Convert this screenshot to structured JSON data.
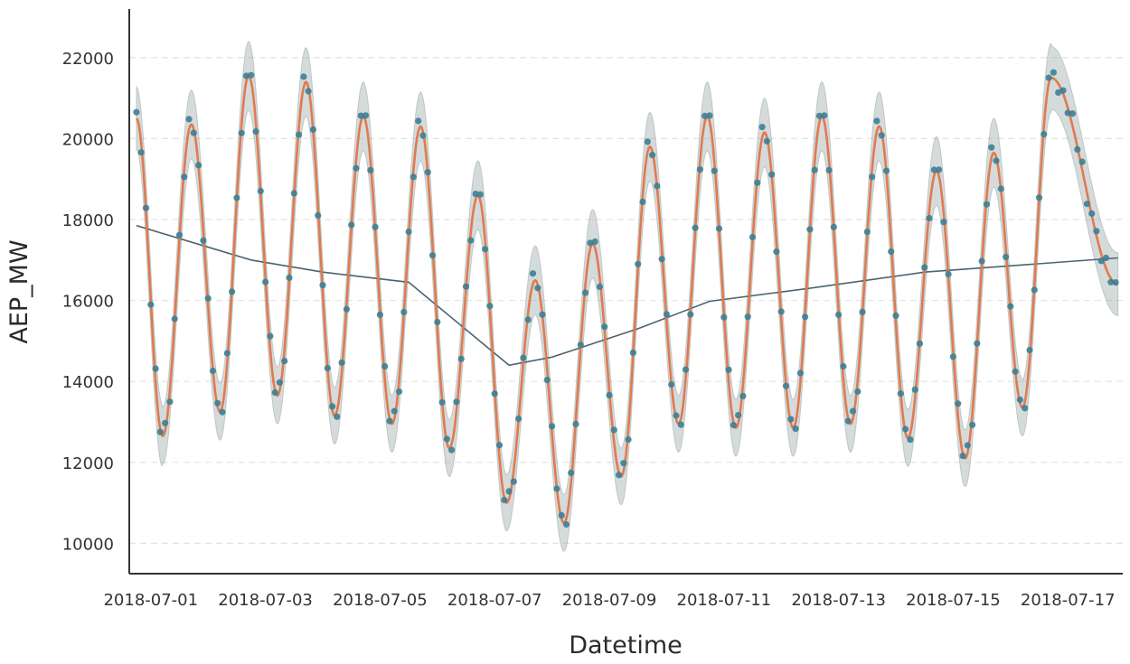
{
  "chart_data": {
    "type": "line",
    "title": "",
    "xlabel": "Datetime",
    "ylabel": "AEP_MW",
    "x_range": [
      "2018-06-30T15:00",
      "2018-07-17T23:00"
    ],
    "ylim": [
      9250,
      23200
    ],
    "x_ticks": [
      "2018-07-01",
      "2018-07-03",
      "2018-07-05",
      "2018-07-07",
      "2018-07-09",
      "2018-07-11",
      "2018-07-13",
      "2018-07-15",
      "2018-07-17"
    ],
    "y_ticks": [
      10000,
      12000,
      14000,
      16000,
      18000,
      20000,
      22000
    ],
    "grid": {
      "horizontal": true,
      "style": "dashed"
    },
    "colors": {
      "observed": "#3d7f95",
      "forecast": "#e07a4f",
      "interval": "#9aa8a6",
      "trend": "#4a6470",
      "axis": "#333333",
      "grid": "#e3e3e3"
    },
    "daily_cycle": {
      "start": "2018-07-01",
      "peak_hour": 17,
      "trough_hour": 5,
      "peaks": [
        20350,
        21550,
        21400,
        20550,
        20300,
        18600,
        16500,
        17400,
        19800,
        20550,
        20150,
        20550,
        20300,
        19200,
        19650,
        21500
      ],
      "troughs": [
        12650,
        13250,
        13650,
        13150,
        12950,
        12350,
        11000,
        10500,
        11650,
        12950,
        12850,
        12850,
        12950,
        12600,
        12100,
        13350
      ]
    },
    "series": [
      {
        "kind": "observed_points",
        "sample_every_hours": 2,
        "residuals": [
          150,
          -220,
          80,
          -120,
          310,
          -60,
          190,
          -280,
          40,
          120,
          -170,
          260,
          -90,
          30,
          -240,
          170,
          -30,
          90,
          -150,
          230,
          -110,
          60,
          -200,
          140
        ]
      },
      {
        "kind": "forecast_line",
        "start": "2018-06-30T18:00",
        "end": "2018-07-17T21:00",
        "first_value": 20500,
        "last_value": 16400
      },
      {
        "kind": "uncertainty_band",
        "half_width_at_peak": 850,
        "half_width_at_trough": 700
      },
      {
        "kind": "trend",
        "x": [
          "2018-06-30T18:00",
          "2018-07-02T18:00",
          "2018-07-04T00:00",
          "2018-07-05T12:00",
          "2018-07-07T06:00",
          "2018-07-08T00:00",
          "2018-07-09T12:00",
          "2018-07-10T18:00",
          "2018-07-12T12:00",
          "2018-07-14T12:00",
          "2018-07-17T21:00"
        ],
        "y": [
          17850,
          17000,
          16700,
          16450,
          14400,
          14600,
          15300,
          15980,
          16300,
          16700,
          17050
        ]
      }
    ]
  }
}
